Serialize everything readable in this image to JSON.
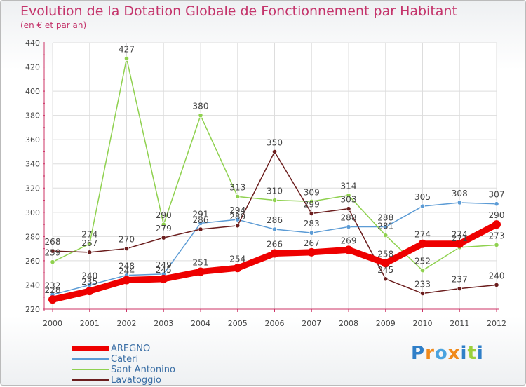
{
  "chart_data": {
    "type": "line",
    "title": "Evolution de la Dotation Globale de Fonctionnement par Habitant",
    "subtitle": "(en € et par an)",
    "xlabel": "",
    "ylabel": "",
    "ylim": [
      220,
      440
    ],
    "yticks": [
      220,
      240,
      260,
      280,
      300,
      320,
      340,
      360,
      380,
      400,
      420,
      440
    ],
    "categories": [
      "2000",
      "2001",
      "2002",
      "2003",
      "2004",
      "2005",
      "2006",
      "2007",
      "2008",
      "2009",
      "2010",
      "2011",
      "2012"
    ],
    "grid": true,
    "legend_position": "bottom-left",
    "series": [
      {
        "name": "AREGNO",
        "color": "#ee0000",
        "values": [
          228,
          235,
          244,
          245,
          251,
          254,
          266,
          267,
          269,
          258,
          274,
          274,
          290
        ]
      },
      {
        "name": "Cateri",
        "color": "#5b9bd5",
        "values": [
          232,
          240,
          248,
          249,
          291,
          294,
          286,
          283,
          288,
          288,
          305,
          308,
          307
        ]
      },
      {
        "name": "Sant Antonino",
        "color": "#8fd14f",
        "values": [
          259,
          274,
          427,
          290,
          380,
          313,
          310,
          309,
          314,
          281,
          252,
          271,
          273
        ]
      },
      {
        "name": "Lavatoggio",
        "color": "#6b1d1d",
        "values": [
          268,
          267,
          270,
          279,
          286,
          289,
          350,
          299,
          303,
          245,
          233,
          237,
          240
        ]
      }
    ]
  },
  "brand": {
    "logo_text": "Proxiti"
  }
}
